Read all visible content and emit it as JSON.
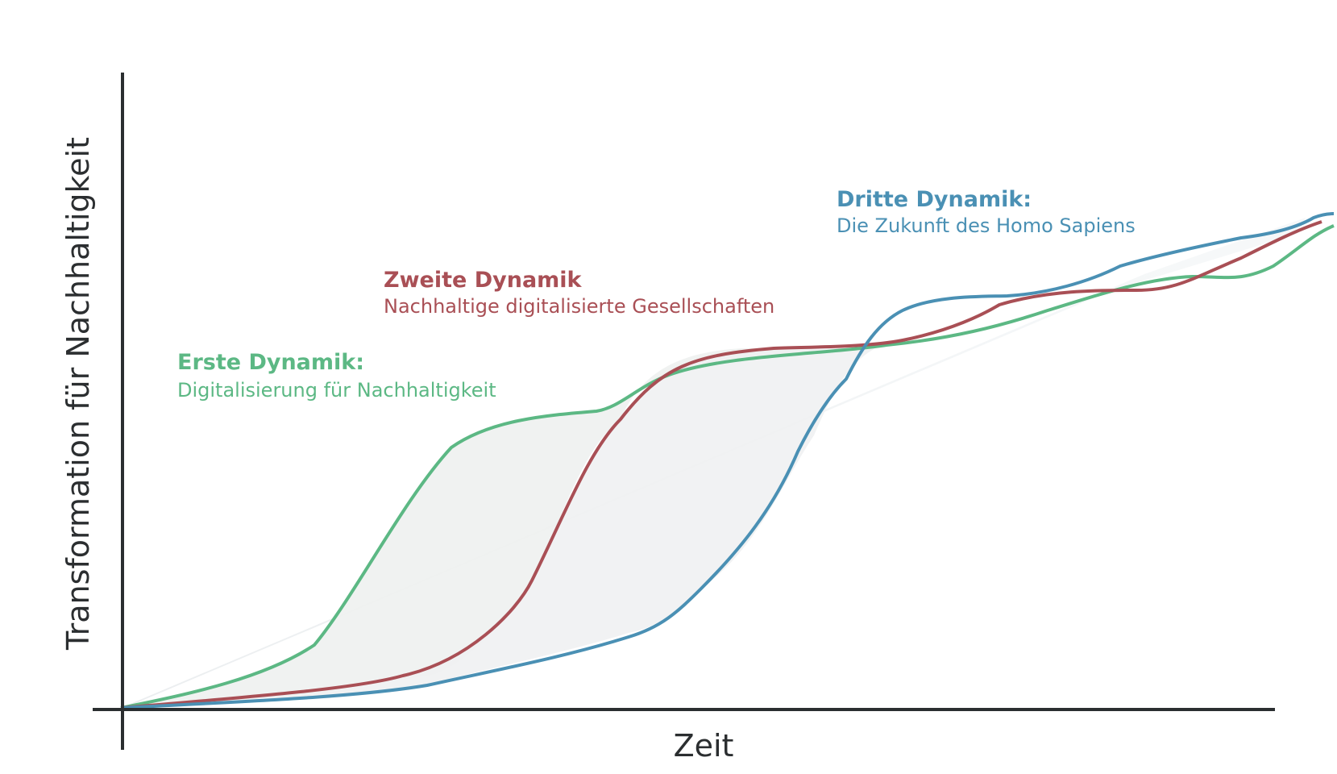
{
  "axes": {
    "x_label": "Zeit",
    "y_label": "Transformation für Nachhaltigkeit"
  },
  "colors": {
    "axis": "#2b2e30",
    "green": "#5cb884",
    "red": "#a94f55",
    "blue": "#4a90b4"
  },
  "dynamics": {
    "first": {
      "title": "Erste Dynamik:",
      "subtitle": "Digitalisierung für Nachhaltigkeit"
    },
    "second": {
      "title": "Zweite Dynamik",
      "subtitle": "Nachhaltige digitalisierte Gesellschaften"
    },
    "third": {
      "title": "Dritte Dynamik:",
      "subtitle": "Die Zukunft des Homo Sapiens"
    }
  }
}
